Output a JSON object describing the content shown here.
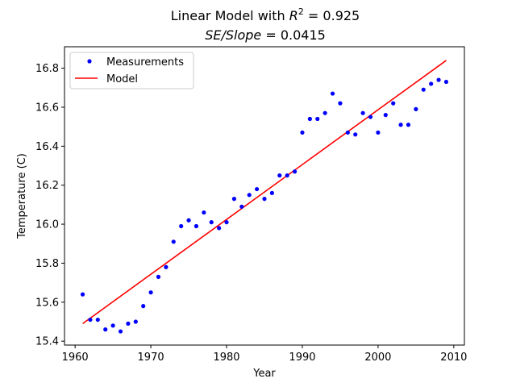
{
  "chart_data": {
    "type": "scatter",
    "title_lines": [
      {
        "prefix": "Linear  Model with ",
        "r2_base": "R",
        "r2_exp": "2",
        "suffix": " =  0.925"
      },
      {
        "se_slope": "SE/Slope",
        "suffix": " =  0.0415"
      }
    ],
    "xlabel": "Year",
    "ylabel": "Temperature (C)",
    "xlim": [
      1958.6,
      2011.4
    ],
    "ylim": [
      15.38,
      16.91
    ],
    "xticks": [
      1960,
      1970,
      1980,
      1990,
      2000,
      2010
    ],
    "yticks": [
      15.4,
      15.6,
      15.8,
      16.0,
      16.2,
      16.4,
      16.6,
      16.8
    ],
    "ytick_labels": [
      "15.4",
      "15.6",
      "15.8",
      "16.0",
      "16.2",
      "16.4",
      "16.6",
      "16.8"
    ],
    "legend_position": "upper-left",
    "series": [
      {
        "name": "Measurements",
        "kind": "points",
        "color": "#0000ff",
        "x": [
          1961,
          1962,
          1963,
          1964,
          1965,
          1966,
          1967,
          1968,
          1969,
          1970,
          1971,
          1972,
          1973,
          1974,
          1975,
          1976,
          1977,
          1978,
          1979,
          1980,
          1981,
          1982,
          1983,
          1984,
          1985,
          1986,
          1987,
          1988,
          1989,
          1990,
          1991,
          1992,
          1993,
          1994,
          1995,
          1996,
          1997,
          1998,
          1999,
          2000,
          2001,
          2002,
          2003,
          2004,
          2005,
          2006,
          2007,
          2008,
          2009
        ],
        "y": [
          15.64,
          15.51,
          15.51,
          15.46,
          15.48,
          15.45,
          15.49,
          15.5,
          15.58,
          15.65,
          15.73,
          15.78,
          15.91,
          15.99,
          16.02,
          15.99,
          16.06,
          16.01,
          15.98,
          16.01,
          16.13,
          16.09,
          16.15,
          16.18,
          16.13,
          16.16,
          16.25,
          16.25,
          16.27,
          16.47,
          16.54,
          16.54,
          16.57,
          16.67,
          16.62,
          16.47,
          16.46,
          16.57,
          16.55,
          16.47,
          16.56,
          16.62,
          16.51,
          16.51,
          16.59,
          16.69,
          16.72,
          16.74,
          16.73
        ]
      },
      {
        "name": "Model",
        "kind": "line",
        "color": "#ff0000",
        "x": [
          1961,
          2009
        ],
        "y": [
          15.49,
          16.84
        ]
      }
    ]
  }
}
